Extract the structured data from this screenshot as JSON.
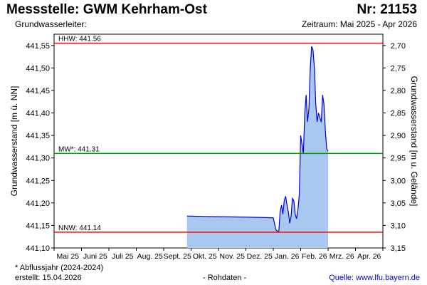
{
  "header": {
    "title": "Messstelle: GWM Kehrham-Ost",
    "nr": "Nr: 21153",
    "aquifer": "Grundwasserleiter:",
    "period": "Zeitraum: Mai 2025 - Apr 2026"
  },
  "footer": {
    "note": "* Abflussjahr (2024-2024)",
    "created": "erstellt:  15.04.2026",
    "rawdata": "- Rohdaten -",
    "source": "Quelle: www.lfu.bayern.de"
  },
  "colors": {
    "hhw": "#ff0000",
    "nnw": "#ff0000",
    "mw": "#009900",
    "line": "#0000dd",
    "fill": "#a8c8f0"
  },
  "chart_data": {
    "type": "area",
    "ylabel": "Grundwasserstand [m ü. NN]",
    "ylabel_right": "Grundwasserstand [m u. Gelände]",
    "ylim": [
      441.1,
      441.575
    ],
    "yticks": [
      "441,10",
      "441,15",
      "441,20",
      "441,25",
      "441,30",
      "441,35",
      "441,40",
      "441,45",
      "441,50",
      "441,55"
    ],
    "yticks_right": [
      "3,15",
      "3,10",
      "3,05",
      "3,00",
      "2,95",
      "2,90",
      "2,85",
      "2,80",
      "2,75",
      "2,70"
    ],
    "month_labels": [
      "Mai 25",
      "Juni 25",
      "Juli 25",
      "Aug. 25",
      "Sept. 25",
      "Okt. 25",
      "Nov. 25",
      "Dez. 25",
      "Jan. 26",
      "Feb. 26",
      "Mrz. 26",
      "Apr. 26"
    ],
    "reference_lines": [
      {
        "label": "HHW: 441.56",
        "value": 441.555,
        "color_key": "hhw"
      },
      {
        "label": "MW*: 441.31",
        "value": 441.31,
        "color_key": "mw"
      },
      {
        "label": "NNW: 441.14",
        "value": 441.135,
        "color_key": "nnw"
      }
    ],
    "x_unit": "month index (0 = May 2025)",
    "series": [
      {
        "values": [
          [
            4.85,
            441.171
          ],
          [
            5.5,
            441.17
          ],
          [
            6.5,
            441.169
          ],
          [
            7.5,
            441.168
          ],
          [
            8.0,
            441.167
          ],
          [
            8.1,
            441.14
          ],
          [
            8.2,
            441.135
          ],
          [
            8.25,
            441.18
          ],
          [
            8.3,
            441.195
          ],
          [
            8.35,
            441.175
          ],
          [
            8.4,
            441.205
          ],
          [
            8.45,
            441.215
          ],
          [
            8.5,
            441.195
          ],
          [
            8.55,
            441.18
          ],
          [
            8.6,
            441.155
          ],
          [
            8.65,
            441.17
          ],
          [
            8.7,
            441.21
          ],
          [
            8.75,
            441.205
          ],
          [
            8.8,
            441.175
          ],
          [
            8.85,
            441.165
          ],
          [
            8.9,
            441.185
          ],
          [
            8.95,
            441.22
          ],
          [
            9.0,
            441.35
          ],
          [
            9.05,
            441.33
          ],
          [
            9.1,
            441.31
          ],
          [
            9.15,
            441.4
          ],
          [
            9.2,
            441.44
          ],
          [
            9.25,
            441.38
          ],
          [
            9.3,
            441.41
          ],
          [
            9.35,
            441.5
          ],
          [
            9.4,
            441.548
          ],
          [
            9.45,
            441.54
          ],
          [
            9.5,
            441.5
          ],
          [
            9.55,
            441.42
          ],
          [
            9.6,
            441.38
          ],
          [
            9.65,
            441.4
          ],
          [
            9.7,
            441.39
          ],
          [
            9.75,
            441.38
          ],
          [
            9.8,
            441.44
          ],
          [
            9.85,
            441.42
          ],
          [
            9.9,
            441.36
          ],
          [
            9.95,
            441.32
          ],
          [
            10.0,
            441.315
          ]
        ]
      }
    ]
  }
}
